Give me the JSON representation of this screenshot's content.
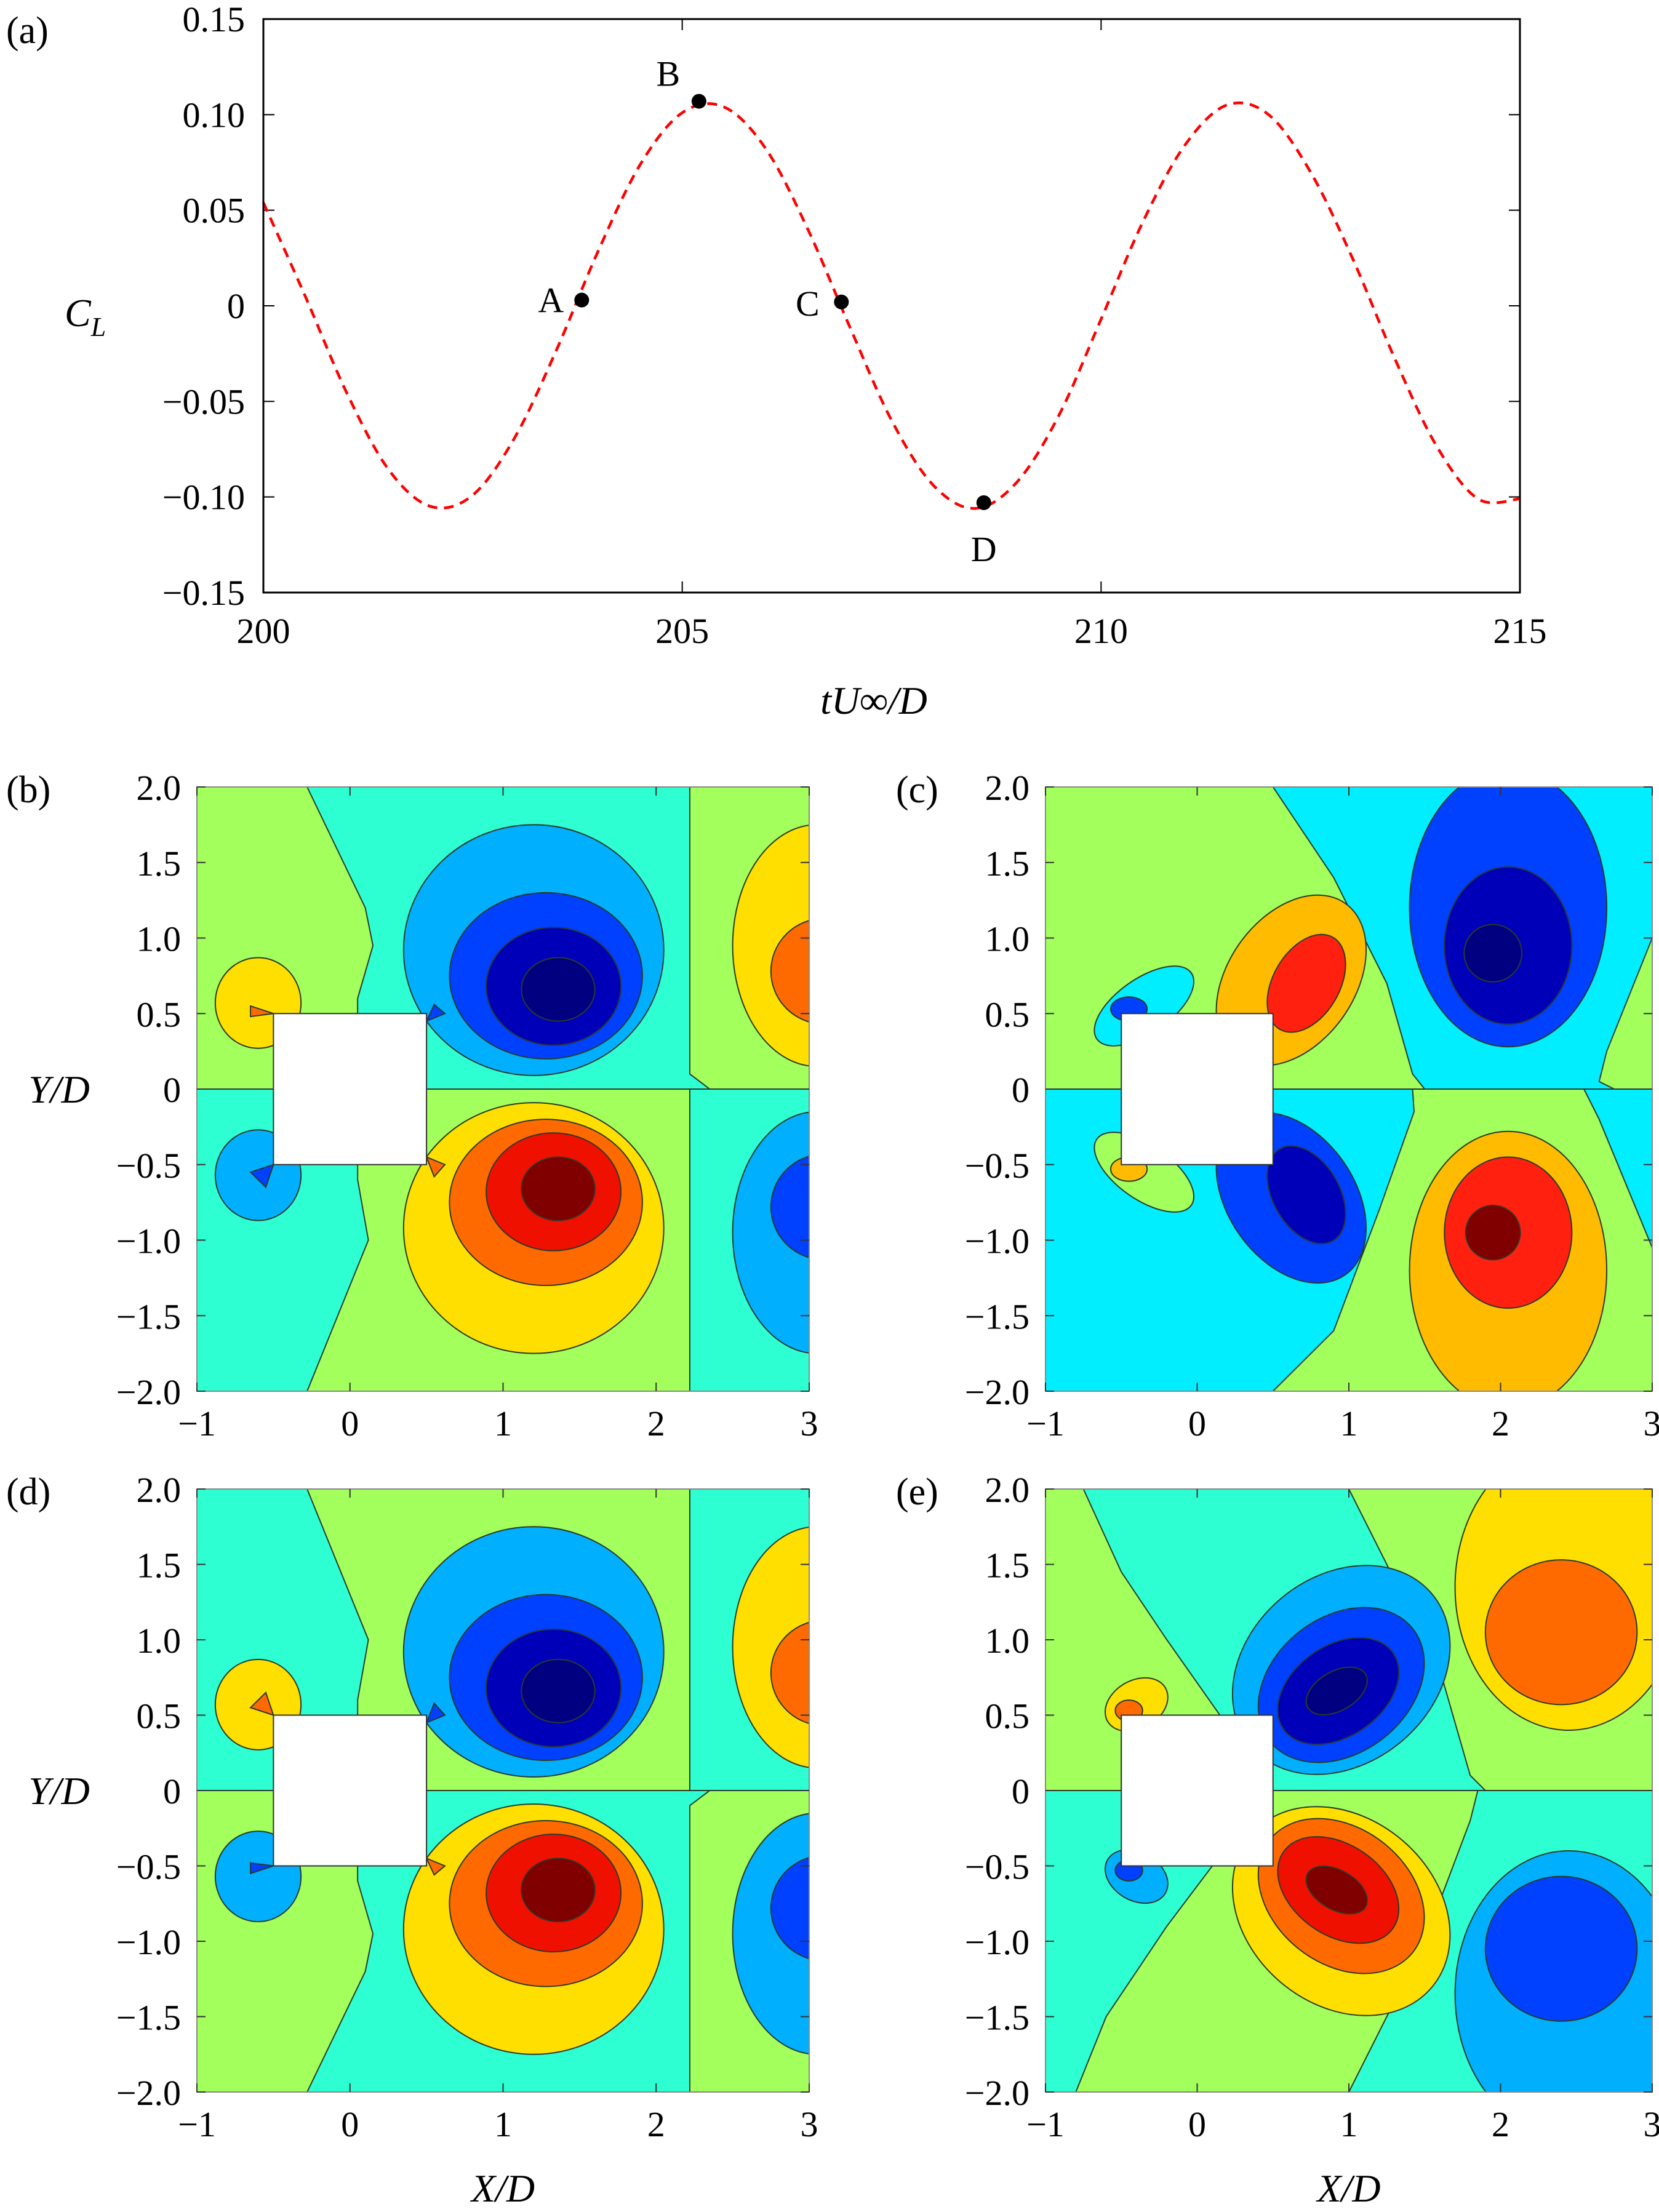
{
  "chart_data": [
    {
      "panel": "(a)",
      "type": "line",
      "xlabel": "tU∞/D",
      "ylabel": "C_L",
      "xlim": [
        200,
        215
      ],
      "ylim": [
        -0.15,
        0.15
      ],
      "xticks": [
        "200",
        "205",
        "210",
        "215"
      ],
      "yticks": [
        "0.15",
        "0.10",
        "0.05",
        "0",
        "−0.05",
        "−0.10",
        "−0.15"
      ],
      "series_color": "#ff0000",
      "line_style": "dashed",
      "x": [
        200,
        200.5,
        201,
        201.5,
        202,
        202.5,
        203,
        203.5,
        204,
        204.5,
        205,
        205.5,
        206,
        206.5,
        207,
        207.5,
        208,
        208.5,
        209,
        209.5,
        210,
        210.5,
        211,
        211.5,
        212,
        212.5,
        213,
        213.5,
        214,
        214.5,
        215
      ],
      "y": [
        0.054,
        0.005,
        -0.046,
        -0.086,
        -0.105,
        -0.099,
        -0.069,
        -0.023,
        0.029,
        0.074,
        0.101,
        0.104,
        0.082,
        0.04,
        -0.011,
        -0.06,
        -0.094,
        -0.106,
        -0.092,
        -0.057,
        -0.007,
        0.044,
        0.084,
        0.105,
        0.1,
        0.07,
        0.025,
        -0.027,
        -0.073,
        -0.101,
        -0.101
      ],
      "points": [
        {
          "label": "A",
          "x": 203.8,
          "y": 0.003
        },
        {
          "label": "B",
          "x": 205.2,
          "y": 0.107
        },
        {
          "label": "C",
          "x": 206.9,
          "y": 0.002
        },
        {
          "label": "D",
          "x": 208.6,
          "y": -0.103
        }
      ]
    },
    {
      "panel": "(b)",
      "type": "contour",
      "xlabel": "",
      "ylabel": "Y/D",
      "xlim": [
        -1,
        3
      ],
      "ylim": [
        -2,
        2
      ]
    },
    {
      "panel": "(c)",
      "type": "contour",
      "xlabel": "",
      "ylabel": "",
      "xlim": [
        -1,
        3
      ],
      "ylim": [
        -2,
        2
      ]
    },
    {
      "panel": "(d)",
      "type": "contour",
      "xlabel": "X/D",
      "ylabel": "Y/D",
      "xlim": [
        -1,
        3
      ],
      "ylim": [
        -2,
        2
      ]
    },
    {
      "panel": "(e)",
      "type": "contour",
      "xlabel": "X/D",
      "ylabel": "",
      "xlim": [
        -1,
        3
      ],
      "ylim": [
        -2,
        2
      ]
    }
  ],
  "contour_axes": {
    "xticks": [
      "−1",
      "0",
      "1",
      "2",
      "3"
    ],
    "yticks": [
      "2.0",
      "1.5",
      "1.0",
      "0.5",
      "0",
      "−0.5",
      "−1.0",
      "−1.5",
      "−2.0"
    ]
  },
  "colormap": "jet"
}
